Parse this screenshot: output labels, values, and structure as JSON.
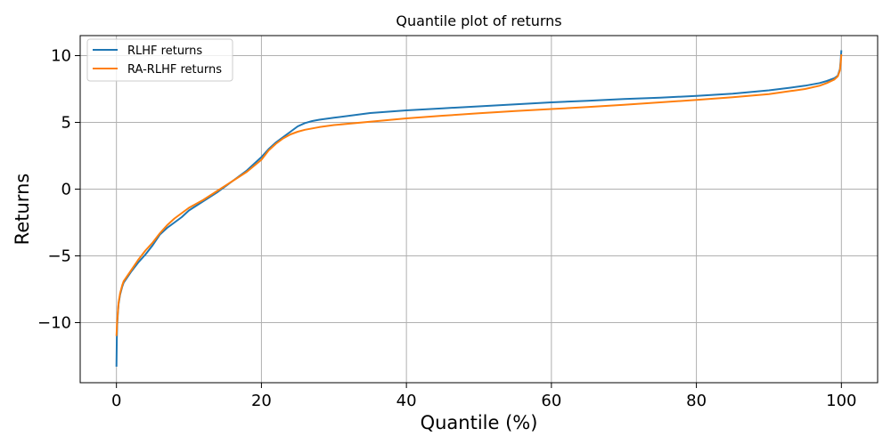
{
  "chart_data": {
    "type": "line",
    "title": "Quantile plot of returns",
    "xlabel": "Quantile (%)",
    "ylabel": "Returns",
    "xlim": [
      -5,
      105
    ],
    "ylim": [
      -14.5,
      11.5
    ],
    "xticks": [
      0,
      20,
      40,
      60,
      80,
      100
    ],
    "xtick_labels": [
      "0",
      "20",
      "40",
      "60",
      "80",
      "100"
    ],
    "yticks": [
      -10,
      -5,
      0,
      5,
      10
    ],
    "ytick_labels": [
      "−10",
      "−5",
      "0",
      "5",
      "10"
    ],
    "grid": true,
    "legend_position": "top-left",
    "series": [
      {
        "name": "RLHF returns",
        "color": "#1f77b4",
        "x": [
          0,
          0.05,
          0.1,
          0.2,
          0.3,
          0.5,
          0.8,
          1,
          1.5,
          2,
          3,
          4,
          5,
          6,
          7,
          8,
          9,
          10,
          12,
          14,
          16,
          18,
          20,
          21,
          22,
          23,
          24,
          25,
          26,
          27,
          28,
          30,
          35,
          40,
          45,
          50,
          55,
          60,
          65,
          70,
          75,
          80,
          85,
          90,
          93,
          95,
          97,
          98,
          99,
          99.5,
          99.8,
          99.9,
          100
        ],
        "y": [
          -13.3,
          -11.2,
          -10.2,
          -9.3,
          -8.6,
          -7.9,
          -7.3,
          -7.0,
          -6.6,
          -6.2,
          -5.5,
          -4.9,
          -4.2,
          -3.4,
          -2.9,
          -2.5,
          -2.1,
          -1.6,
          -0.9,
          -0.2,
          0.6,
          1.4,
          2.4,
          3.0,
          3.5,
          3.9,
          4.3,
          4.7,
          4.95,
          5.1,
          5.2,
          5.35,
          5.7,
          5.9,
          6.05,
          6.2,
          6.35,
          6.5,
          6.62,
          6.75,
          6.85,
          6.98,
          7.15,
          7.4,
          7.6,
          7.75,
          7.95,
          8.1,
          8.3,
          8.5,
          9.0,
          9.6,
          10.4
        ]
      },
      {
        "name": "RA-RLHF returns",
        "color": "#ff7f0e",
        "x": [
          0,
          0.05,
          0.1,
          0.2,
          0.3,
          0.5,
          0.8,
          1,
          1.5,
          2,
          3,
          4,
          5,
          6,
          7,
          8,
          9,
          10,
          12,
          14,
          16,
          18,
          20,
          21,
          22,
          23,
          24,
          25,
          26,
          27,
          28,
          30,
          35,
          40,
          45,
          50,
          55,
          60,
          65,
          70,
          75,
          80,
          85,
          90,
          93,
          95,
          97,
          98,
          99,
          99.5,
          99.8,
          99.9,
          100
        ],
        "y": [
          -11.0,
          -10.5,
          -9.9,
          -9.2,
          -8.5,
          -7.8,
          -7.2,
          -6.9,
          -6.5,
          -6.1,
          -5.3,
          -4.6,
          -4.0,
          -3.3,
          -2.7,
          -2.2,
          -1.8,
          -1.4,
          -0.8,
          -0.1,
          0.6,
          1.3,
          2.2,
          2.9,
          3.4,
          3.8,
          4.1,
          4.3,
          4.45,
          4.55,
          4.65,
          4.8,
          5.05,
          5.3,
          5.5,
          5.68,
          5.85,
          6.0,
          6.15,
          6.32,
          6.5,
          6.68,
          6.88,
          7.12,
          7.35,
          7.5,
          7.75,
          7.95,
          8.2,
          8.45,
          8.9,
          9.4,
          10.1
        ]
      }
    ]
  }
}
